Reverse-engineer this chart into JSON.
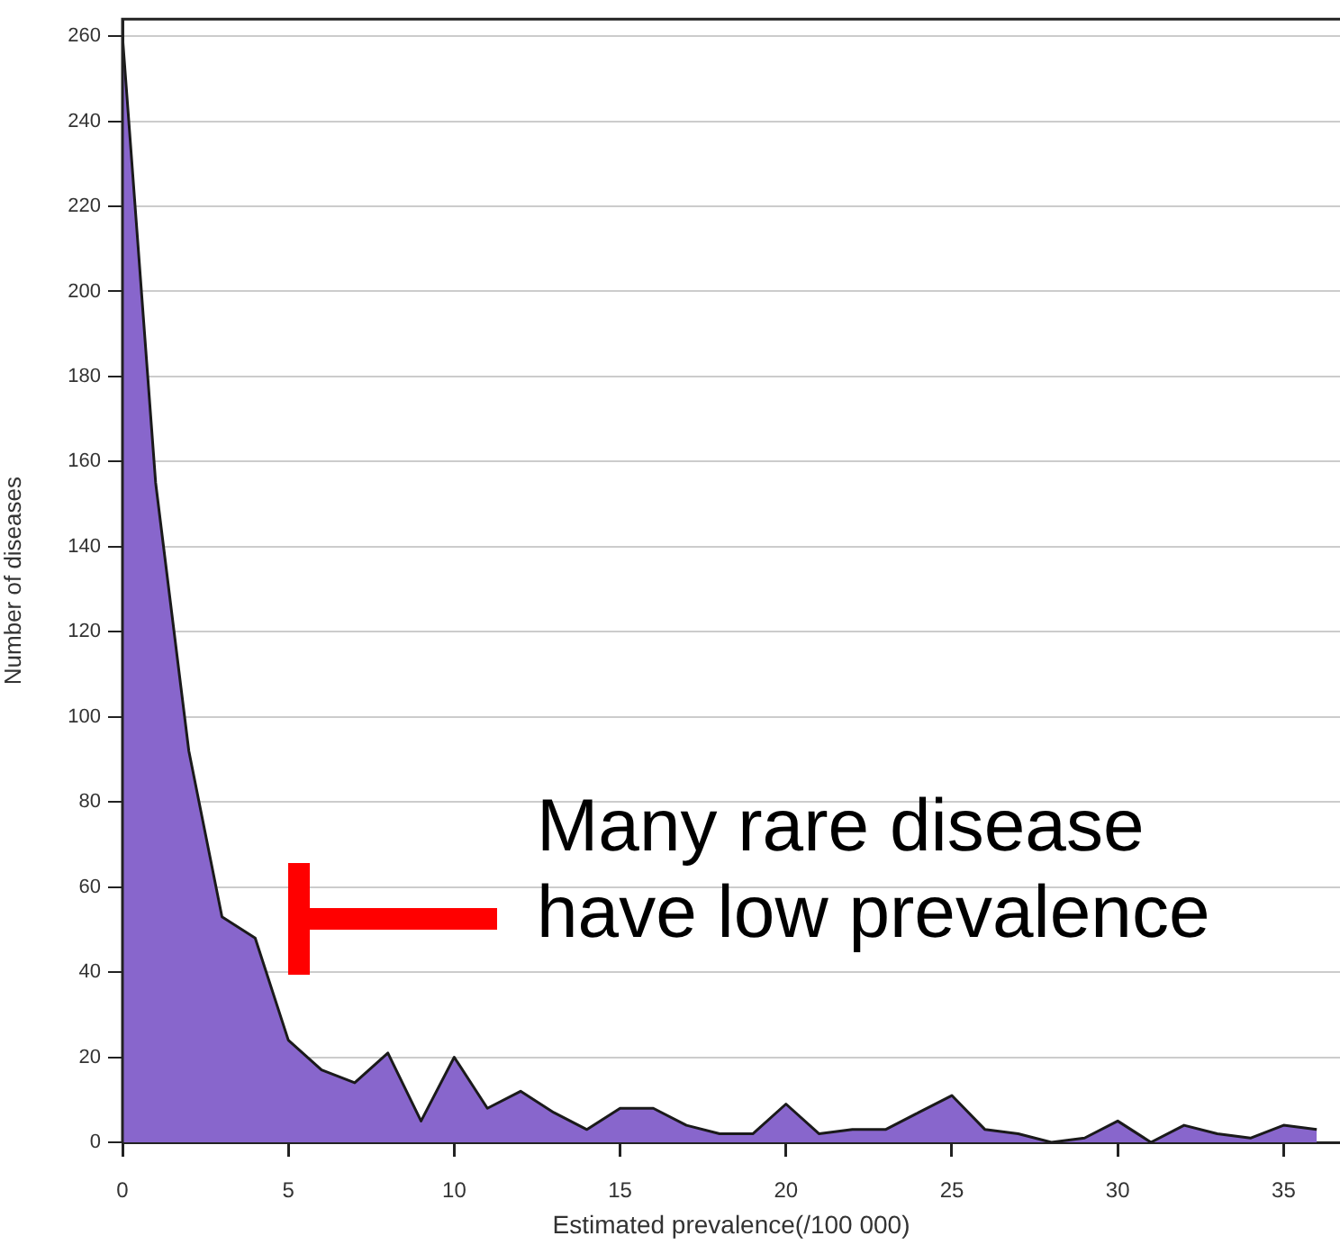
{
  "chart_data": {
    "type": "area",
    "xlabel": "Estimated prevalence(/100 000)",
    "ylabel": "Number of diseases",
    "x": [
      0,
      1,
      2,
      3,
      4,
      5,
      6,
      7,
      8,
      9,
      10,
      11,
      12,
      13,
      14,
      15,
      16,
      17,
      18,
      19,
      20,
      21,
      22,
      23,
      24,
      25,
      26,
      27,
      28,
      29,
      30,
      31,
      32,
      33,
      34,
      35,
      36
    ],
    "series": [
      {
        "color": "#8866cc",
        "values": [
          260,
          155,
          92,
          53,
          48,
          24,
          17,
          14,
          21,
          5,
          20,
          8,
          12,
          7,
          3,
          8,
          8,
          4,
          2,
          2,
          9,
          2,
          3,
          3,
          7,
          11,
          3,
          2,
          0,
          1,
          5,
          0,
          4,
          2,
          1,
          4,
          3
        ]
      }
    ],
    "xlim": [
      0,
      36.7
    ],
    "ylim": [
      0,
      264
    ],
    "xticks": [
      0,
      5,
      10,
      15,
      20,
      25,
      30,
      35
    ],
    "yticks": [
      0,
      20,
      40,
      60,
      80,
      100,
      120,
      140,
      160,
      180,
      200,
      220,
      240,
      260
    ],
    "grid": "y",
    "legend": false,
    "annotations": [
      "Many rare disease\nhave low prevalence"
    ]
  }
}
